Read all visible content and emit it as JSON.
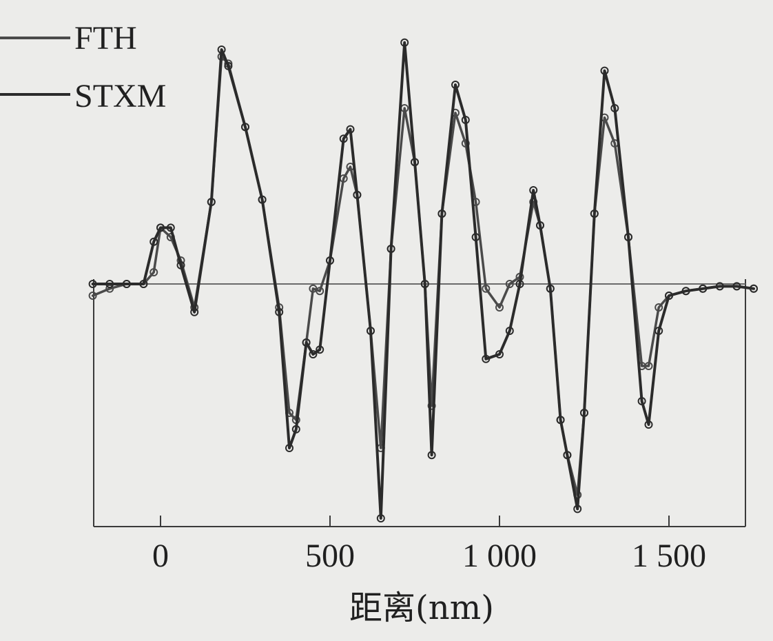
{
  "chart_data": {
    "type": "line",
    "title": "",
    "xlabel": "距离(nm)",
    "ylabel": "",
    "x_ticks": [
      0,
      500,
      1000,
      1500
    ],
    "x_tick_labels": [
      "0",
      "500",
      "1 000",
      "1 500"
    ],
    "xlim": [
      -200,
      1750
    ],
    "ylim": [
      -1.0,
      1.1
    ],
    "grid": false,
    "legend_position": "top-left",
    "series": [
      {
        "name": "FTH",
        "color": "#4a4a4a",
        "x": [
          -200,
          -150,
          -100,
          -50,
          -20,
          0,
          30,
          60,
          100,
          150,
          180,
          200,
          250,
          300,
          350,
          380,
          400,
          430,
          450,
          470,
          500,
          540,
          560,
          580,
          620,
          650,
          680,
          720,
          750,
          780,
          800,
          830,
          870,
          900,
          930,
          960,
          1000,
          1030,
          1060,
          1100,
          1120,
          1150,
          1180,
          1200,
          1230,
          1250,
          1280,
          1310,
          1340,
          1380,
          1420,
          1440,
          1470,
          1500,
          1550,
          1600,
          1650,
          1700,
          1750
        ],
        "y": [
          -0.05,
          -0.02,
          0.0,
          0.0,
          0.05,
          0.24,
          0.2,
          0.1,
          -0.1,
          0.35,
          0.97,
          0.94,
          0.67,
          0.36,
          -0.1,
          -0.55,
          -0.58,
          -0.25,
          -0.02,
          -0.03,
          0.1,
          0.45,
          0.5,
          0.38,
          -0.2,
          -0.7,
          0.15,
          0.75,
          0.52,
          0.0,
          -0.52,
          0.3,
          0.73,
          0.6,
          0.35,
          -0.02,
          -0.1,
          0.0,
          0.03,
          0.35,
          0.25,
          -0.02,
          -0.58,
          -0.73,
          -0.9,
          -0.55,
          0.3,
          0.71,
          0.6,
          0.2,
          -0.35,
          -0.35,
          -0.1,
          -0.05,
          -0.03,
          -0.02,
          -0.01,
          -0.01,
          -0.02
        ]
      },
      {
        "name": "STXM",
        "color": "#2b2b2b",
        "x": [
          -200,
          -150,
          -100,
          -50,
          -20,
          0,
          30,
          60,
          100,
          150,
          180,
          200,
          250,
          300,
          350,
          380,
          400,
          430,
          450,
          470,
          500,
          540,
          560,
          580,
          620,
          650,
          680,
          720,
          750,
          780,
          800,
          830,
          870,
          900,
          930,
          960,
          1000,
          1030,
          1060,
          1100,
          1120,
          1150,
          1180,
          1200,
          1230,
          1250,
          1280,
          1310,
          1340,
          1380,
          1420,
          1440,
          1470,
          1500,
          1550,
          1600,
          1650,
          1700,
          1750
        ],
        "y": [
          0.0,
          0.0,
          0.0,
          0.0,
          0.18,
          0.24,
          0.24,
          0.08,
          -0.12,
          0.35,
          1.0,
          0.93,
          0.67,
          0.36,
          -0.12,
          -0.7,
          -0.62,
          -0.25,
          -0.3,
          -0.28,
          0.1,
          0.62,
          0.66,
          0.38,
          -0.2,
          -1.0,
          0.15,
          1.03,
          0.52,
          0.0,
          -0.73,
          0.3,
          0.85,
          0.7,
          0.2,
          -0.32,
          -0.3,
          -0.2,
          0.0,
          0.4,
          0.25,
          -0.02,
          -0.58,
          -0.73,
          -0.96,
          -0.55,
          0.3,
          0.91,
          0.75,
          0.2,
          -0.5,
          -0.6,
          -0.2,
          -0.05,
          -0.03,
          -0.02,
          -0.01,
          -0.01,
          -0.02
        ]
      }
    ]
  }
}
